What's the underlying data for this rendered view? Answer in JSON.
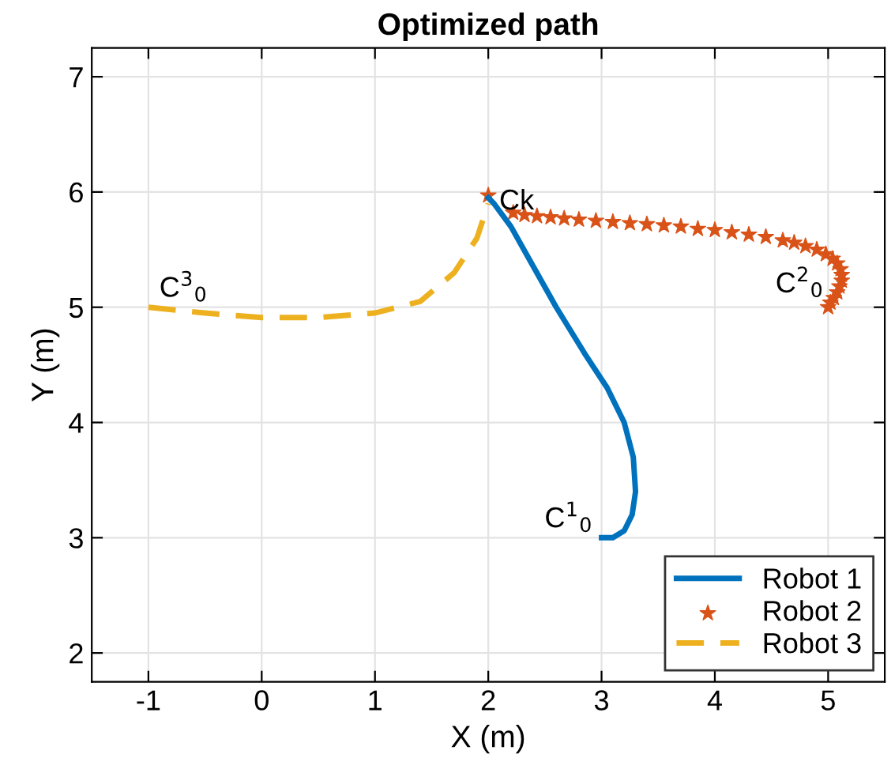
{
  "chart_data": {
    "type": "line",
    "title": "Optimized path",
    "xlabel": "X (m)",
    "ylabel": "Y (m)",
    "xlim": [
      -1.5,
      5.5
    ],
    "ylim": [
      1.75,
      7.25
    ],
    "xticks": [
      -1,
      0,
      1,
      2,
      3,
      4,
      5
    ],
    "yticks": [
      2,
      3,
      4,
      5,
      6,
      7
    ],
    "grid": true,
    "legend": "bottom right",
    "series": [
      {
        "name": "Robot 1",
        "color": "#0072bd",
        "line_style": "solid",
        "marker": "none",
        "x": [
          3.0,
          3.1,
          3.2,
          3.27,
          3.3,
          3.28,
          3.2,
          3.05,
          2.85,
          2.6,
          2.4,
          2.2,
          2.05,
          2.0
        ],
        "values": [
          3.0,
          3.0,
          3.06,
          3.2,
          3.4,
          3.7,
          4.0,
          4.3,
          4.6,
          5.0,
          5.35,
          5.7,
          5.9,
          5.95
        ]
      },
      {
        "name": "Robot 2",
        "type": "scatter",
        "color": "#d95319",
        "marker": "star",
        "x": [
          5.0,
          5.02,
          5.05,
          5.08,
          5.1,
          5.12,
          5.12,
          5.11,
          5.08,
          5.04,
          4.98,
          4.9,
          4.8,
          4.7,
          4.6,
          4.45,
          4.3,
          4.15,
          4.0,
          3.85,
          3.7,
          3.55,
          3.4,
          3.25,
          3.1,
          2.95,
          2.8,
          2.67,
          2.55,
          2.43,
          2.32,
          2.22,
          2.14,
          2.08,
          2.04,
          2.01,
          2.0
        ],
        "values": [
          5.0,
          5.04,
          5.08,
          5.13,
          5.18,
          5.23,
          5.28,
          5.33,
          5.38,
          5.42,
          5.46,
          5.5,
          5.53,
          5.56,
          5.58,
          5.61,
          5.63,
          5.65,
          5.67,
          5.68,
          5.7,
          5.71,
          5.72,
          5.73,
          5.74,
          5.75,
          5.76,
          5.77,
          5.78,
          5.79,
          5.8,
          5.82,
          null,
          null,
          null,
          null,
          5.97
        ]
      },
      {
        "name": "Robot 3",
        "color": "#edb120",
        "line_style": "dashed",
        "marker": "none",
        "x": [
          -1.0,
          -0.5,
          0.0,
          0.5,
          1.0,
          1.4,
          1.7,
          1.9,
          2.0
        ],
        "values": [
          5.0,
          4.95,
          4.91,
          4.91,
          4.95,
          5.05,
          5.3,
          5.6,
          5.9
        ]
      }
    ],
    "annotations": [
      {
        "text": "C$^{1}$$_{0}$",
        "x": 3.0,
        "y": 3.0
      },
      {
        "text": "C$^{2}$$_{0}$",
        "x": 5.0,
        "y": 5.0
      },
      {
        "text": "C$^{3}$$_{0}$",
        "x": -1.0,
        "y": 5.0
      },
      {
        "text": "Ck",
        "x": 2.0,
        "y": 5.95
      }
    ]
  }
}
